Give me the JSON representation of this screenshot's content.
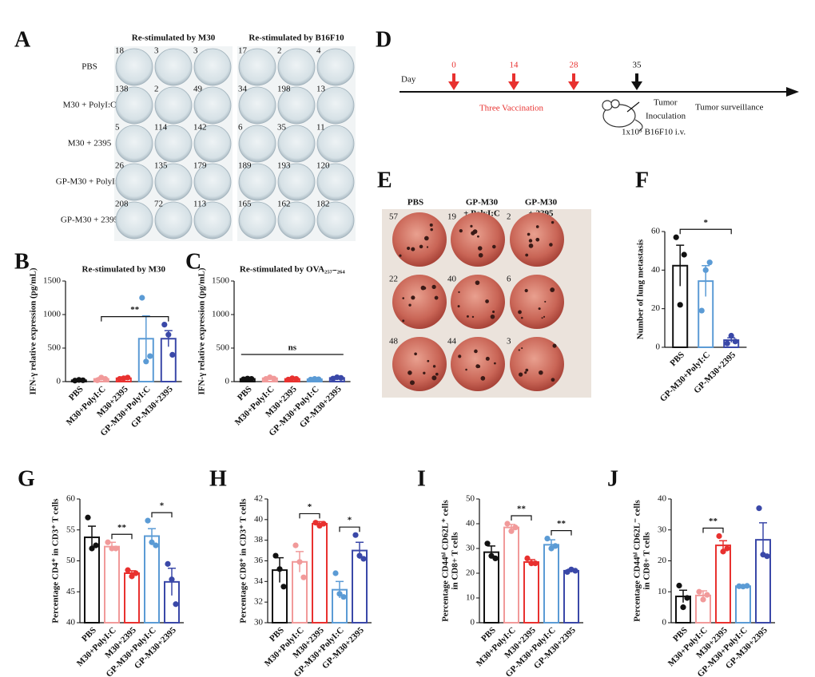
{
  "panel_labels": [
    "A",
    "B",
    "C",
    "D",
    "E",
    "F",
    "G",
    "H",
    "I",
    "J"
  ],
  "panel_a": {
    "headers": [
      "Re-stimulated by M30",
      "Re-stimulated by B16F10"
    ],
    "row_labels": [
      "PBS",
      "M30 + PolyI:C",
      "M30 + 2395",
      "GP-M30 + PolyI:C",
      "GP-M30 + 2395"
    ],
    "counts": [
      [
        18,
        3,
        3,
        17,
        2,
        4
      ],
      [
        138,
        2,
        49,
        34,
        198,
        13
      ],
      [
        5,
        114,
        142,
        6,
        35,
        11
      ],
      [
        26,
        135,
        179,
        189,
        193,
        120
      ],
      [
        208,
        72,
        113,
        165,
        162,
        182
      ]
    ]
  },
  "panel_d": {
    "day_label": "Day",
    "days": [
      0,
      14,
      28,
      35
    ],
    "day_colors": [
      "#e8312f",
      "#e8312f",
      "#e8312f",
      "#111111"
    ],
    "vaccination": "Three Vaccination",
    "inoculation": [
      "Tumor",
      "Inoculation"
    ],
    "surveillance": "Tumor surveillance",
    "dose": "1x10⁵ B16F10 i.v."
  },
  "panel_e": {
    "headers": [
      [
        "PBS"
      ],
      [
        "GP-M30",
        "+ PolyI:C"
      ],
      [
        "GP-M30",
        "+ 2395"
      ]
    ],
    "counts": [
      [
        57,
        19,
        2
      ],
      [
        22,
        40,
        6
      ],
      [
        48,
        44,
        3
      ]
    ]
  },
  "chart_data": [
    {
      "type": "bar",
      "title": "Re-stimulated by M30",
      "ylabel": [
        "IFN-γ relative expression (pg/mL)"
      ],
      "categories": [
        "PBS",
        "M30+PolyI:C",
        "M30+2395",
        "GP-M30+PolyI:C",
        "GP-M30+2395"
      ],
      "colors": [
        "#111111",
        "#f19a9a",
        "#e8312f",
        "#5b9bd5",
        "#3a48a8"
      ],
      "values": [
        20,
        40,
        50,
        640,
        640
      ],
      "errors": [
        10,
        20,
        20,
        340,
        120
      ],
      "points": [
        [
          15,
          25,
          20
        ],
        [
          20,
          60,
          40
        ],
        [
          40,
          50,
          60
        ],
        [
          1250,
          300,
          380
        ],
        [
          850,
          700,
          400
        ]
      ],
      "ylim": [
        0,
        1500
      ],
      "yticks": [
        0,
        500,
        1000,
        1500
      ],
      "annotations": [
        {
          "text": "**",
          "groups": [
            1,
            4
          ]
        }
      ]
    },
    {
      "type": "bar",
      "title": "Re-stimulated by OVA₂₅₇₋₂₆₄",
      "ylabel": [
        "IFN-γ relative expression (pg/mL)"
      ],
      "categories": [
        "PBS",
        "M30+PolyI:C",
        "M30+2395",
        "GP-M30+PolyI:C",
        "GP-M30+2395"
      ],
      "colors": [
        "#111111",
        "#f19a9a",
        "#e8312f",
        "#5b9bd5",
        "#3a48a8"
      ],
      "values": [
        40,
        50,
        40,
        35,
        55
      ],
      "errors": [
        5,
        10,
        8,
        5,
        8
      ],
      "points": [
        [
          35,
          45,
          40
        ],
        [
          40,
          65,
          45
        ],
        [
          30,
          50,
          40
        ],
        [
          30,
          40,
          35
        ],
        [
          45,
          65,
          55
        ]
      ],
      "ylim": [
        0,
        1500
      ],
      "yticks": [
        0,
        500,
        1000,
        1500
      ],
      "annotations": [
        {
          "text": "ns",
          "groups": [
            0,
            4
          ],
          "legs": false
        }
      ]
    },
    {
      "type": "bar",
      "ylabel": [
        "Number of lung metastasis"
      ],
      "categories": [
        "PBS",
        "GP-M30+PolyI:C",
        "GP-M30+2395"
      ],
      "colors": [
        "#111111",
        "#5b9bd5",
        "#3a48a8"
      ],
      "values": [
        42.3,
        34.3,
        3.7
      ],
      "errors": [
        10.6,
        8.0,
        1.2
      ],
      "points": [
        [
          57,
          22,
          48
        ],
        [
          19,
          40,
          44
        ],
        [
          2,
          6,
          3
        ]
      ],
      "ylim": [
        0,
        60
      ],
      "yticks": [
        0,
        20,
        40,
        60
      ],
      "annotations": [
        {
          "text": "*",
          "groups": [
            0,
            2
          ]
        }
      ]
    },
    {
      "type": "bar",
      "ylabel": [
        "Percentage CD4⁺ in CD3⁺ T cells"
      ],
      "categories": [
        "PBS",
        "M30+PolyI:C",
        "M30+2395",
        "GP-M30+PolyI:C",
        "GP-M30+2395"
      ],
      "colors": [
        "#111111",
        "#f19a9a",
        "#e8312f",
        "#5b9bd5",
        "#3a48a8"
      ],
      "values": [
        53.8,
        52.3,
        48.0,
        54.0,
        46.6
      ],
      "errors": [
        1.8,
        0.7,
        0.4,
        1.2,
        2.2
      ],
      "points": [
        [
          57,
          52,
          52.5
        ],
        [
          53,
          52,
          52
        ],
        [
          48.5,
          47.5,
          48
        ],
        [
          56.5,
          53,
          52.5
        ],
        [
          49.5,
          47,
          43
        ]
      ],
      "ylim": [
        40,
        60
      ],
      "yticks": [
        40,
        45,
        50,
        55,
        60
      ],
      "annotations": [
        {
          "text": "**",
          "groups": [
            1,
            2
          ]
        },
        {
          "text": "*",
          "groups": [
            3,
            4
          ]
        }
      ]
    },
    {
      "type": "bar",
      "ylabel": [
        "Percentage CD8⁺ in CD3⁺ T cells"
      ],
      "categories": [
        "PBS",
        "M30+PolyI:C",
        "M30+2395",
        "GP-M30+PolyI:C",
        "GP-M30+2395"
      ],
      "colors": [
        "#111111",
        "#f19a9a",
        "#e8312f",
        "#5b9bd5",
        "#3a48a8"
      ],
      "values": [
        35.1,
        35.9,
        39.6,
        33.2,
        37.0
      ],
      "errors": [
        1.2,
        1.0,
        0.2,
        0.8,
        0.8
      ],
      "points": [
        [
          36.5,
          35.2,
          33.5
        ],
        [
          37.5,
          35.9,
          34.4
        ],
        [
          39.7,
          39.4,
          39.6
        ],
        [
          34.8,
          32.8,
          32.5
        ],
        [
          38.5,
          36.5,
          36.2
        ]
      ],
      "ylim": [
        30,
        42
      ],
      "yticks": [
        30,
        32,
        34,
        36,
        38,
        40,
        42
      ],
      "annotations": [
        {
          "text": "*",
          "groups": [
            1,
            2
          ]
        },
        {
          "text": "*",
          "groups": [
            3,
            4
          ]
        }
      ]
    },
    {
      "type": "bar",
      "ylabel": [
        "Percentage CD44ʰⁱ CD62L⁺ cells",
        "in CD8+ T cells"
      ],
      "categories": [
        "PBS",
        "M30+PolyI:C",
        "M30+2395",
        "GP-M30+PolyI:C",
        "GP-M30+2395"
      ],
      "colors": [
        "#111111",
        "#f19a9a",
        "#e8312f",
        "#5b9bd5",
        "#3a48a8"
      ],
      "values": [
        28.5,
        38.5,
        24.5,
        31.5,
        21.0
      ],
      "errors": [
        2.5,
        1.2,
        1.0,
        2.0,
        0.6
      ],
      "points": [
        [
          32,
          27,
          26
        ],
        [
          40,
          37,
          38.5
        ],
        [
          26,
          24,
          24
        ],
        [
          34,
          30,
          31
        ],
        [
          20.5,
          21.5,
          21
        ]
      ],
      "ylim": [
        0,
        50
      ],
      "yticks": [
        0,
        10,
        20,
        30,
        40,
        50
      ],
      "annotations": [
        {
          "text": "**",
          "groups": [
            1,
            2
          ]
        },
        {
          "text": "**",
          "groups": [
            3,
            4
          ]
        }
      ]
    },
    {
      "type": "bar",
      "ylabel": [
        "Percentage CD44ʰⁱ CD62L⁻ cells",
        "in CD8+ T cells"
      ],
      "categories": [
        "PBS",
        "M30+PolyI:C",
        "M30+2395",
        "GP-M30+PolyI:C",
        "GP-M30+2395"
      ],
      "colors": [
        "#111111",
        "#f19a9a",
        "#e8312f",
        "#5b9bd5",
        "#3a48a8"
      ],
      "values": [
        8.5,
        8.8,
        25.0,
        11.8,
        26.8
      ],
      "errors": [
        2.0,
        1.5,
        1.5,
        0.2,
        5.5
      ],
      "points": [
        [
          12,
          5,
          8
        ],
        [
          10,
          7.5,
          9
        ],
        [
          28,
          23,
          24
        ],
        [
          11.8,
          11.7,
          11.9
        ],
        [
          37,
          22,
          21.5
        ]
      ],
      "ylim": [
        0,
        40
      ],
      "yticks": [
        0,
        10,
        20,
        30,
        40
      ],
      "annotations": [
        {
          "text": "**",
          "groups": [
            1,
            2
          ]
        }
      ]
    }
  ]
}
